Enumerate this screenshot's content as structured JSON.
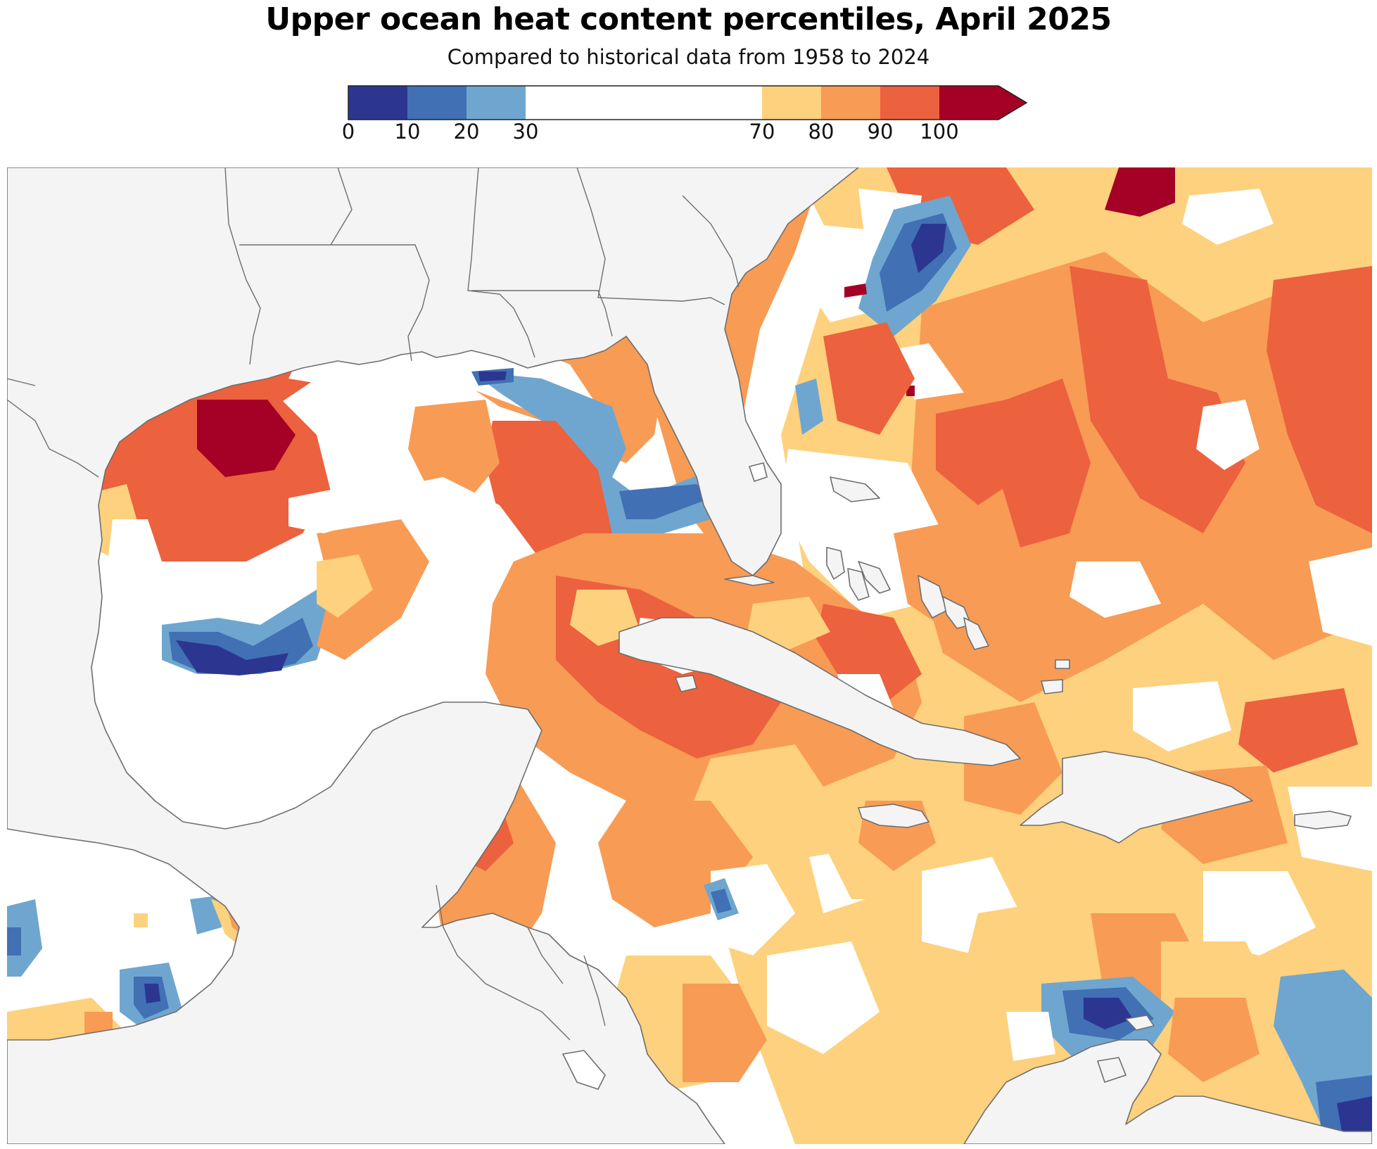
{
  "title": "Upper ocean heat content percentiles, April 2025",
  "subtitle": "Compared to historical data from 1958 to 2024",
  "legend": {
    "ticks": [
      "0",
      "10",
      "20",
      "30",
      "70",
      "80",
      "90",
      "100"
    ],
    "bins": [
      {
        "from": 0,
        "to": 10,
        "color": "#2c3691"
      },
      {
        "from": 10,
        "to": 20,
        "color": "#4170b4"
      },
      {
        "from": 20,
        "to": 30,
        "color": "#6fa6cf"
      },
      {
        "from": 30,
        "to": 70,
        "color": "#ffffff"
      },
      {
        "from": 70,
        "to": 80,
        "color": "#fdd17d"
      },
      {
        "from": 80,
        "to": 90,
        "color": "#f89b55"
      },
      {
        "from": 90,
        "to": 100,
        "color": "#ec613e"
      },
      {
        "from": 100,
        "to": 110,
        "color": "#a50026"
      }
    ],
    "extend": "max"
  },
  "map": {
    "land_color": "#f4f4f4",
    "border_color": "#6e6e6e",
    "region": "Gulf of Mexico, Caribbean Sea and western Atlantic"
  }
}
